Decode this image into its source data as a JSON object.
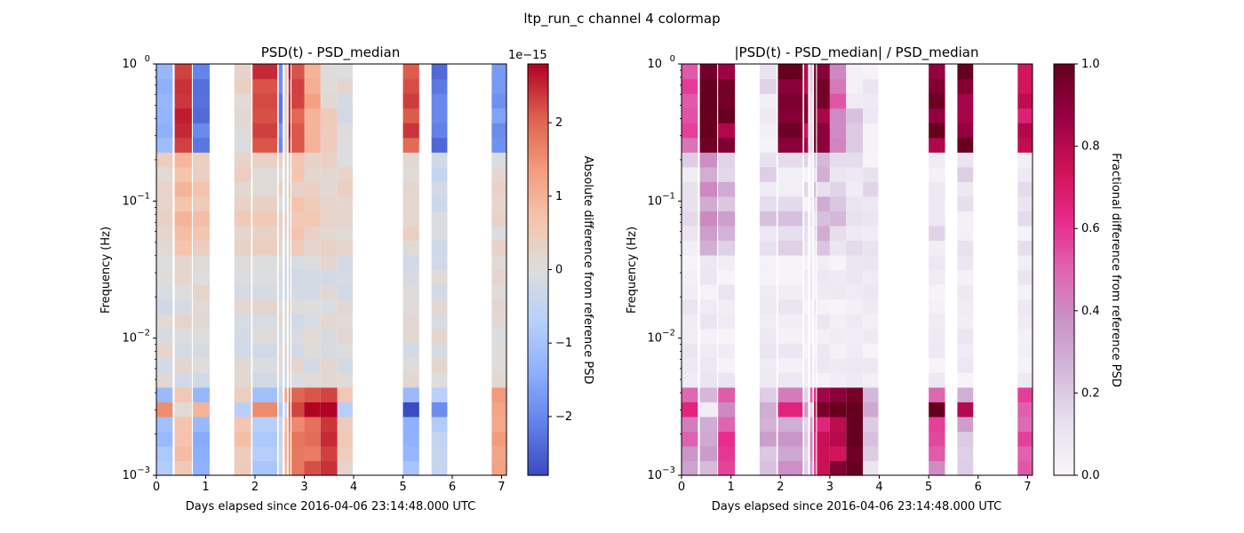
{
  "figure": {
    "suptitle": "ltp_run_c channel 4 colormap"
  },
  "chart_data": [
    {
      "type": "heatmap",
      "title": "PSD(t) - PSD_median",
      "xlabel": "Days elapsed since 2016-04-06 23:14:48.000 UTC",
      "ylabel": "Frequency (Hz)",
      "xlim": [
        0,
        7.1
      ],
      "ylim": [
        0.001,
        1
      ],
      "yscale": "log",
      "x_ticks": [
        "0",
        "1",
        "2",
        "3",
        "4",
        "5",
        "6",
        "7"
      ],
      "y_ticks": [
        "10^-3",
        "10^-2",
        "10^-1",
        "10^0"
      ],
      "colormap": "coolwarm",
      "colorbar": {
        "label": "Absolute difference from reference PSD",
        "offset_text": "1e−15",
        "range": [
          -2.8,
          2.8
        ],
        "ticks": [
          "−2",
          "−1",
          "0",
          "1",
          "2"
        ]
      }
    },
    {
      "type": "heatmap",
      "title": "|PSD(t) - PSD_median| / PSD_median",
      "xlabel": "Days elapsed since 2016-04-06 23:14:48.000 UTC",
      "ylabel": "Frequency (Hz)",
      "xlim": [
        0,
        7.1
      ],
      "ylim": [
        0.001,
        1
      ],
      "yscale": "log",
      "x_ticks": [
        "0",
        "1",
        "2",
        "3",
        "4",
        "5",
        "6",
        "7"
      ],
      "y_ticks": [
        "10^-3",
        "10^-2",
        "10^-1",
        "10^0"
      ],
      "colormap": "PuRd",
      "colorbar": {
        "label": "Fractional difference from reference PSD",
        "range": [
          0,
          1
        ],
        "ticks": [
          "0.0",
          "0.2",
          "0.4",
          "0.6",
          "0.8",
          "1.0"
        ]
      }
    }
  ]
}
